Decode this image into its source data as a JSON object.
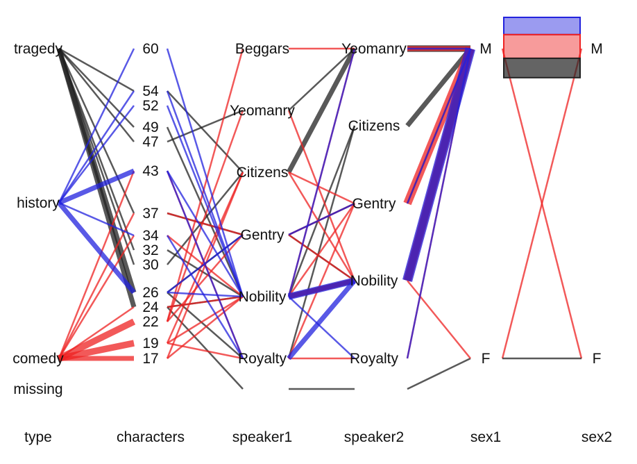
{
  "chart_data": {
    "type": "parallel-categories",
    "title": "",
    "colors": {
      "comedy": "#ee2222",
      "history": "#2222dd",
      "tragedy": "#222222"
    },
    "axes": [
      {
        "key": "type",
        "label": "type",
        "levels": [
          "tragedy",
          "history",
          "comedy",
          "missing"
        ]
      },
      {
        "key": "characters",
        "label": "characters",
        "levels": [
          "60",
          "54",
          "52",
          "49",
          "47",
          "43",
          "37",
          "34",
          "32",
          "30",
          "26",
          "24",
          "22",
          "19",
          "17"
        ]
      },
      {
        "key": "speaker1",
        "label": "speaker1",
        "levels": [
          "Beggars",
          "Yeomanry",
          "Citizens",
          "Gentry",
          "Nobility",
          "Royalty"
        ]
      },
      {
        "key": "speaker2",
        "label": "speaker2",
        "levels": [
          "Yeomanry",
          "Citizens",
          "Gentry",
          "Nobility",
          "Royalty"
        ]
      },
      {
        "key": "sex1",
        "label": "sex1",
        "levels": [
          "M",
          "F"
        ]
      },
      {
        "key": "sex2",
        "label": "sex2",
        "levels": [
          "M",
          "F"
        ]
      }
    ],
    "records": [
      {
        "type": "tragedy",
        "characters": "54",
        "speaker1": "Citizens",
        "speaker2": "Yeomanry",
        "sex1": "M",
        "sex2": "M",
        "count": 1
      },
      {
        "type": "tragedy",
        "characters": "49",
        "speaker1": "Nobility",
        "speaker2": "Citizens",
        "sex1": "M",
        "sex2": "M",
        "count": 1
      },
      {
        "type": "tragedy",
        "characters": "47",
        "speaker1": "Yeomanry",
        "speaker2": "Yeomanry",
        "sex1": "M",
        "sex2": "M",
        "count": 1
      },
      {
        "type": "tragedy",
        "characters": "37",
        "speaker1": "Gentry",
        "speaker2": "Gentry",
        "sex1": "M",
        "sex2": "M",
        "count": 1
      },
      {
        "type": "tragedy",
        "characters": "32",
        "speaker1": "Nobility",
        "speaker2": "Nobility",
        "sex1": "M",
        "sex2": "M",
        "count": 1
      },
      {
        "type": "tragedy",
        "characters": "30",
        "speaker1": "Citizens",
        "speaker2": "Yeomanry",
        "sex1": "M",
        "sex2": "M",
        "count": 1
      },
      {
        "type": "tragedy",
        "characters": "26",
        "speaker1": "Gentry",
        "speaker2": "Nobility",
        "sex1": "M",
        "sex2": "M",
        "count": 1
      },
      {
        "type": "tragedy",
        "characters": "24",
        "speaker1": "Nobility",
        "speaker2": "Nobility",
        "sex1": "M",
        "sex2": "M",
        "count": 1
      },
      {
        "type": "tragedy",
        "characters": "26",
        "speaker1": "Royalty",
        "speaker2": "Citizens",
        "sex1": "M",
        "sex2": "M",
        "count": 1
      },
      {
        "type": "tragedy",
        "characters": "24",
        "speaker1": "missing",
        "speaker2": "missing",
        "sex1": "F",
        "sex2": "F",
        "count": 1
      },
      {
        "type": "history",
        "characters": "60",
        "speaker1": "Nobility",
        "speaker2": "Nobility",
        "sex1": "M",
        "sex2": "M",
        "count": 1
      },
      {
        "type": "history",
        "characters": "54",
        "speaker1": "Nobility",
        "speaker2": "Royalty",
        "sex1": "M",
        "sex2": "M",
        "count": 1
      },
      {
        "type": "history",
        "characters": "52",
        "speaker1": "Nobility",
        "speaker2": "Nobility",
        "sex1": "M",
        "sex2": "M",
        "count": 1
      },
      {
        "type": "history",
        "characters": "43",
        "speaker1": "Nobility",
        "speaker2": "Nobility",
        "sex1": "M",
        "sex2": "M",
        "count": 1
      },
      {
        "type": "history",
        "characters": "43",
        "speaker1": "Royalty",
        "speaker2": "Nobility",
        "sex1": "M",
        "sex2": "M",
        "count": 1
      },
      {
        "type": "history",
        "characters": "34",
        "speaker1": "Royalty",
        "speaker2": "Nobility",
        "sex1": "M",
        "sex2": "M",
        "count": 1
      },
      {
        "type": "history",
        "characters": "26",
        "speaker1": "Gentry",
        "speaker2": "Gentry",
        "sex1": "M",
        "sex2": "M",
        "count": 1
      },
      {
        "type": "history",
        "characters": "26",
        "speaker1": "Nobility",
        "speaker2": "Yeomanry",
        "sex1": "M",
        "sex2": "M",
        "count": 1
      },
      {
        "type": "comedy",
        "characters": "43",
        "speaker1": "Royalty",
        "speaker2": "Gentry",
        "sex1": "M",
        "sex2": "M",
        "count": 1
      },
      {
        "type": "comedy",
        "characters": "37",
        "speaker1": "Gentry",
        "speaker2": "Nobility",
        "sex1": "M",
        "sex2": "M",
        "count": 1
      },
      {
        "type": "comedy",
        "characters": "34",
        "speaker1": "Nobility",
        "speaker2": "Yeomanry",
        "sex1": "M",
        "sex2": "M",
        "count": 1
      },
      {
        "type": "comedy",
        "characters": "24",
        "speaker1": "Nobility",
        "speaker2": "Gentry",
        "sex1": "M",
        "sex2": "M",
        "count": 1
      },
      {
        "type": "comedy",
        "characters": "22",
        "speaker1": "Beggars",
        "speaker2": "Yeomanry",
        "sex1": "M",
        "sex2": "M",
        "count": 1
      },
      {
        "type": "comedy",
        "characters": "22",
        "speaker1": "Gentry",
        "speaker2": "Gentry",
        "sex1": "M",
        "sex2": "M",
        "count": 1
      },
      {
        "type": "comedy",
        "characters": "22",
        "speaker1": "Yeomanry",
        "speaker2": "Nobility",
        "sex1": "M",
        "sex2": "M",
        "count": 1
      },
      {
        "type": "comedy",
        "characters": "19",
        "speaker1": "Citizens",
        "speaker2": "Gentry",
        "sex1": "M",
        "sex2": "M",
        "count": 1
      },
      {
        "type": "comedy",
        "characters": "19",
        "speaker1": "Nobility",
        "speaker2": "Nobility",
        "sex1": "M",
        "sex2": "M",
        "count": 1
      },
      {
        "type": "comedy",
        "characters": "19",
        "speaker1": "Royalty",
        "speaker2": "Royalty",
        "sex1": "M",
        "sex2": "M",
        "count": 1
      },
      {
        "type": "comedy",
        "characters": "17",
        "speaker1": "Nobility",
        "speaker2": "Nobility",
        "sex1": "F",
        "sex2": "M",
        "count": 1
      },
      {
        "type": "comedy",
        "characters": "17",
        "speaker1": "Citizens",
        "speaker2": "Nobility",
        "sex1": "M",
        "sex2": "F",
        "count": 1
      }
    ]
  }
}
